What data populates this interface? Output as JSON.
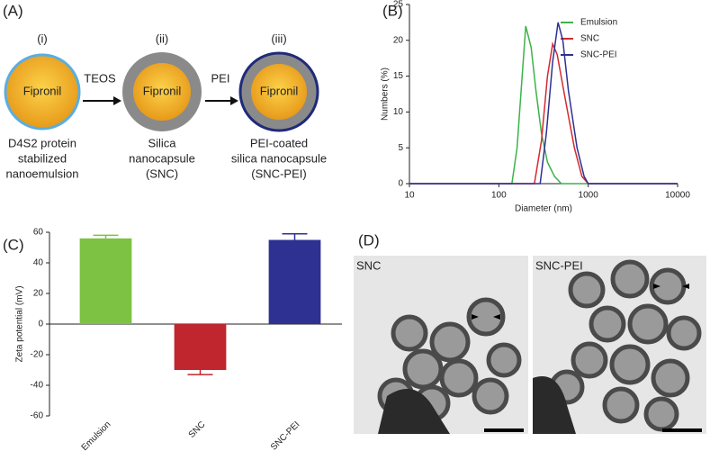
{
  "panel_a": {
    "label": "(A)",
    "steps": [
      {
        "numeral": "(i)",
        "core": "Fipronil",
        "caption": [
          "D4S2 protein",
          "stabilized",
          "nanoemulsion"
        ]
      },
      {
        "numeral": "(ii)",
        "core": "Fipronil",
        "caption": [
          "Silica",
          "nanocapsule",
          "(SNC)"
        ]
      },
      {
        "numeral": "(iii)",
        "core": "Fipronil",
        "caption": [
          "PEI-coated",
          "silica nanocapsule",
          "(SNC-PEI)"
        ]
      }
    ],
    "arrows": [
      "TEOS",
      "PEI"
    ]
  },
  "chart_data": [
    {
      "label": "(B)",
      "type": "line",
      "xlabel": "Diameter (nm)",
      "ylabel": "Numbers (%)",
      "xscale": "log",
      "xlim": [
        10,
        10000
      ],
      "xticks": [
        10,
        100,
        1000,
        10000
      ],
      "ylim": [
        0,
        25
      ],
      "yticks": [
        0,
        5,
        10,
        15,
        20,
        25
      ],
      "legend": "upper right",
      "series": [
        {
          "name": "Emulsion",
          "color": "#3cb34a",
          "x": [
            10,
            140,
            160,
            180,
            200,
            230,
            260,
            300,
            350,
            420,
            500,
            10000
          ],
          "values": [
            0,
            0,
            5,
            14,
            22,
            19,
            13,
            7,
            3,
            1,
            0,
            0
          ]
        },
        {
          "name": "SNC",
          "color": "#d42a2f",
          "x": [
            10,
            250,
            300,
            350,
            400,
            450,
            550,
            700,
            850,
            1000,
            10000
          ],
          "values": [
            0,
            0,
            6,
            15,
            19.5,
            18,
            12,
            5,
            1,
            0,
            0
          ]
        },
        {
          "name": "SNC-PEI",
          "color": "#2e3192",
          "x": [
            10,
            290,
            340,
            400,
            460,
            520,
            600,
            750,
            900,
            1000,
            10000
          ],
          "values": [
            0,
            0,
            7,
            17,
            22.5,
            20,
            13,
            5,
            1,
            0,
            0
          ]
        }
      ]
    },
    {
      "label": "(C)",
      "type": "bar",
      "ylabel": "Zeta potential (mV)",
      "categories": [
        "Emulsion",
        "SNC",
        "SNC-PEI"
      ],
      "values": [
        56,
        -30,
        55
      ],
      "errors": [
        2,
        3,
        4
      ],
      "colors": [
        "#7dc242",
        "#c0262d",
        "#2e3192"
      ],
      "ylim": [
        -60,
        60
      ],
      "yticks": [
        -60,
        -40,
        -20,
        0,
        20,
        40,
        60
      ]
    }
  ],
  "panel_d": {
    "label": "(D)",
    "images": [
      "SNC",
      "SNC-PEI"
    ]
  }
}
